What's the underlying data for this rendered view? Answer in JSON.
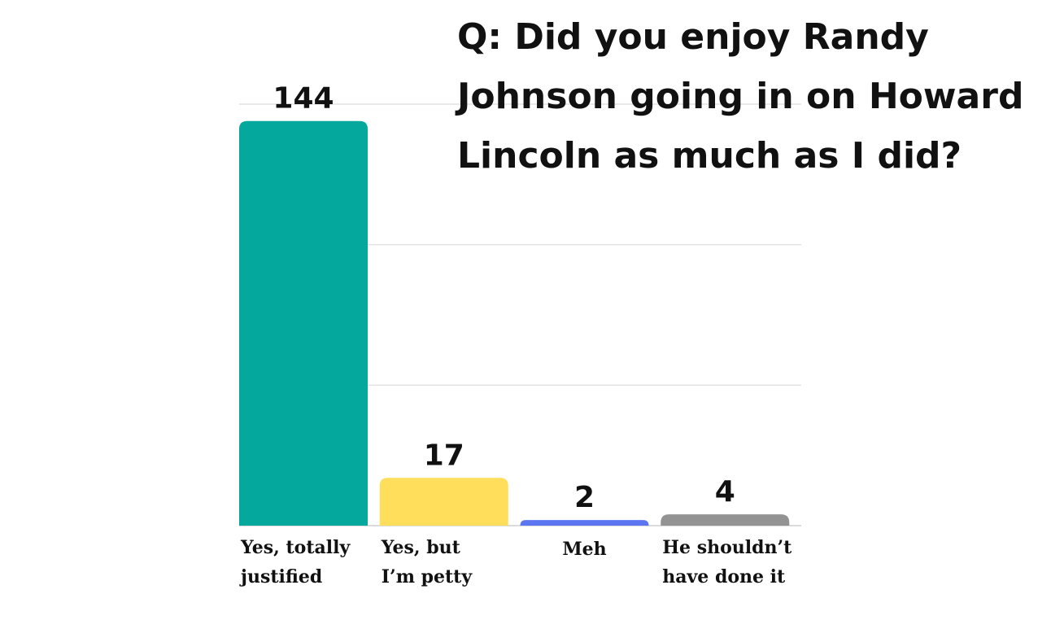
{
  "chart_data": {
    "type": "bar",
    "title_lines": [
      "Q: Did you enjoy Randy",
      "Johnson going in on Howard",
      "Lincoln as much as I did?"
    ],
    "categories": [
      [
        "Yes, totally",
        "justified"
      ],
      [
        "Yes, but",
        "I’m petty"
      ],
      [
        "Meh"
      ],
      [
        "He shouldn’t",
        "have done it"
      ]
    ],
    "values": [
      144,
      17,
      2,
      4
    ],
    "value_labels": [
      "144",
      "17",
      "2",
      "4"
    ],
    "colors": [
      "#05a89d",
      "#ffde5c",
      "#5b76f0",
      "#939393"
    ],
    "ylim": [
      0,
      150
    ],
    "grid": true,
    "xlabel": "",
    "ylabel": ""
  }
}
